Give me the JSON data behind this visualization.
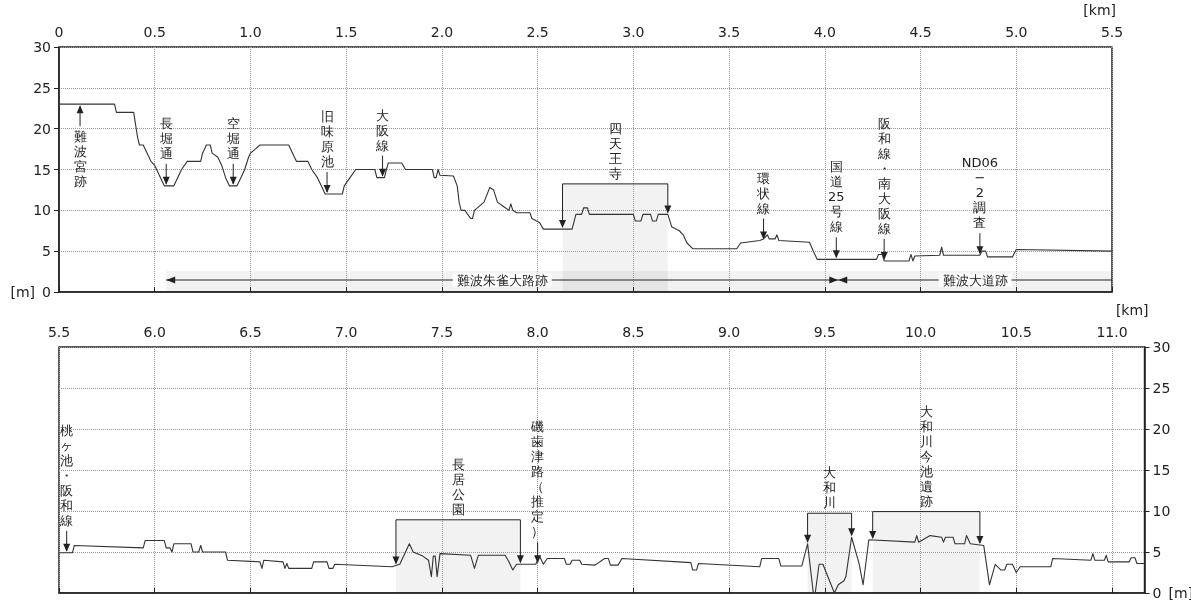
{
  "chart_data": [
    {
      "type": "line",
      "xlabel": "[km]",
      "ylabel": "[m]",
      "color": "#333333",
      "grid": true,
      "marker": "none",
      "line_style": "solid",
      "xlim": [
        0,
        5.5
      ],
      "ylim": [
        0,
        30
      ],
      "xticks": [
        0,
        0.5,
        {
          "value": 1,
          "label": "1.0"
        },
        1.5,
        {
          "value": 2,
          "label": "2.0"
        },
        2.5,
        {
          "value": 3,
          "label": "3.0"
        },
        3.5,
        {
          "value": 4,
          "label": "4.0"
        },
        4.5,
        {
          "value": 5,
          "label": "5.0"
        },
        5.5
      ],
      "yticks": [
        0,
        5,
        10,
        15,
        20,
        25,
        30
      ],
      "x": [
        0,
        0.29,
        0.3,
        0.39,
        0.41,
        0.42,
        0.44,
        0.45,
        0.48,
        0.5,
        0.51,
        0.53,
        0.55,
        0.6,
        0.62,
        0.64,
        0.67,
        0.74,
        0.75,
        0.77,
        0.79,
        0.8,
        0.83,
        0.85,
        0.87,
        0.89,
        0.93,
        0.95,
        0.97,
        0.99,
        1.0,
        1.05,
        1.2,
        1.22,
        1.24,
        1.3,
        1.32,
        1.35,
        1.37,
        1.39,
        1.48,
        1.49,
        1.52,
        1.55,
        1.65,
        1.66,
        1.7,
        1.71,
        1.72,
        1.79,
        1.81,
        1.95,
        1.96,
        1.97,
        1.98,
        1.99,
        2.06,
        2.08,
        2.09,
        2.1,
        2.12,
        2.15,
        2.16,
        2.17,
        2.22,
        2.25,
        2.27,
        2.29,
        2.32,
        2.35,
        2.36,
        2.37,
        2.39,
        2.46,
        2.47,
        2.51,
        2.53,
        2.68,
        2.7,
        2.73,
        2.74,
        2.76,
        2.77,
        3.0,
        3.01,
        3.04,
        3.05,
        3.09,
        3.1,
        3.12,
        3.13,
        3.18,
        3.2,
        3.24,
        3.26,
        3.28,
        3.31,
        3.54,
        3.56,
        3.66,
        3.68,
        3.7,
        3.71,
        3.74,
        3.75,
        3.76,
        3.92,
        3.94,
        3.96,
        4.27,
        4.28,
        4.3,
        4.31,
        4.44,
        4.45,
        4.46,
        4.47,
        4.6,
        4.61,
        4.62,
        4.81,
        4.82,
        4.84,
        4.85,
        4.98,
        5.0,
        5.5
      ],
      "values": [
        23,
        23,
        22,
        22,
        19,
        18,
        18,
        17.5,
        16,
        15.5,
        15,
        14,
        13,
        13,
        14,
        15,
        16,
        16,
        17,
        18,
        18,
        17,
        16.5,
        15.5,
        14,
        13,
        13,
        14,
        15,
        16.5,
        17,
        18,
        18,
        17,
        16,
        16,
        15,
        14,
        13,
        12,
        12,
        13,
        14,
        15,
        15,
        14,
        14,
        15,
        15.8,
        15.8,
        15,
        15,
        14,
        14,
        15,
        14.3,
        14.2,
        13,
        11,
        10,
        10,
        9,
        9,
        10,
        11,
        12.8,
        12.5,
        11,
        10.5,
        10,
        10.8,
        10,
        9.7,
        9.7,
        9,
        8.5,
        7.7,
        7.7,
        9.5,
        9.5,
        10.3,
        10.3,
        9.5,
        9.5,
        8.7,
        8.7,
        9.5,
        9.5,
        8.7,
        8.7,
        9.5,
        9.5,
        8,
        7.5,
        7,
        6,
        5.3,
        5.3,
        6,
        6.3,
        6.5,
        7,
        6.5,
        6.5,
        7,
        6.3,
        6.1,
        5,
        4,
        4,
        4.6,
        4.6,
        3.8,
        3.8,
        4.6,
        3.8,
        4.4,
        4.5,
        5.5,
        4.5,
        4.5,
        5,
        5,
        4.3,
        4.3,
        5.2,
        5
      ],
      "annotations": [
        {
          "text": "難波宮跡",
          "x": 0.11,
          "y": 23
        },
        {
          "text": "長堀通",
          "x": 0.56,
          "y": 13
        },
        {
          "text": "空堀通",
          "x": 0.91,
          "y": 13
        },
        {
          "text": "旧味原池",
          "x": 1.4,
          "y": 12
        },
        {
          "text": "大阪線",
          "x": 1.69,
          "y": 14
        },
        {
          "text": "環状線",
          "x": 3.68,
          "y": 6.3
        },
        {
          "text": "国道25号線",
          "x": 4.06,
          "y": 4
        },
        {
          "text": "阪和線・南大阪線",
          "x": 4.31,
          "y": 3.8
        },
        {
          "text": "ND06−2調査",
          "x": 4.81,
          "y": 4.5
        }
      ],
      "bands": [
        {
          "axis": "x",
          "from": 2.63,
          "to": 3.18,
          "label": "四天王寺"
        },
        {
          "axis": "x",
          "from": 0.56,
          "to": 4.07,
          "label": "難波朱雀大路跡"
        },
        {
          "axis": "x",
          "from": 4.07,
          "to": 5.5,
          "label": "難波大道跡"
        }
      ]
    },
    {
      "type": "line",
      "xlabel": "[km]",
      "ylabel": "[m]",
      "color": "#333333",
      "grid": true,
      "marker": "none",
      "line_style": "solid",
      "xlim": [
        5.5,
        11.17
      ],
      "ylim": [
        0,
        30
      ],
      "xticks": [
        5.5,
        {
          "value": 6,
          "label": "6.0"
        },
        6.5,
        {
          "value": 7,
          "label": "7.0"
        },
        7.5,
        {
          "value": 8,
          "label": "8.0"
        },
        8.5,
        {
          "value": 9,
          "label": "9.0"
        },
        9.5,
        {
          "value": 10,
          "label": "10.0"
        },
        10.5,
        {
          "value": 11,
          "label": "11.0"
        }
      ],
      "yticks": [
        0,
        5,
        10,
        15,
        20,
        25,
        30
      ],
      "x": [
        5.5,
        5.57,
        5.58,
        5.94,
        5.95,
        6.05,
        6.06,
        6.08,
        6.09,
        6.1,
        6.19,
        6.2,
        6.23,
        6.24,
        6.25,
        6.37,
        6.38,
        6.55,
        6.56,
        6.57,
        6.67,
        6.68,
        6.69,
        6.7,
        6.82,
        6.83,
        6.9,
        6.91,
        6.93,
        6.94,
        7.24,
        7.28,
        7.33,
        7.35,
        7.4,
        7.43,
        7.445,
        7.455,
        7.465,
        7.475,
        7.49,
        7.65,
        7.67,
        7.69,
        7.83,
        7.85,
        7.87,
        7.89,
        7.99,
        8.01,
        8.03,
        8.05,
        8.14,
        8.15,
        8.17,
        8.18,
        8.22,
        8.23,
        8.3,
        8.35,
        8.37,
        8.38,
        8.42,
        8.44,
        8.8,
        8.81,
        8.83,
        8.84,
        9.16,
        9.17,
        9.26,
        9.27,
        9.38,
        9.41,
        9.44,
        9.45,
        9.47,
        9.49,
        9.55,
        9.57,
        9.6,
        9.61,
        9.64,
        9.68,
        9.7,
        9.73,
        9.97,
        9.98,
        9.99,
        10.05,
        10.11,
        10.12,
        10.13,
        10.17,
        10.18,
        10.23,
        10.24,
        10.26,
        10.33,
        10.36,
        10.39,
        10.42,
        10.44,
        10.45,
        10.48,
        10.5,
        10.52,
        10.68,
        10.69,
        10.89,
        10.9,
        10.91,
        10.96,
        10.97,
        10.98,
        11.09,
        11.1,
        11.12,
        11.13,
        11.17
      ],
      "values": [
        4.9,
        4.9,
        5.8,
        5.5,
        6.4,
        6.4,
        5.5,
        5.5,
        5,
        6,
        6,
        5,
        5,
        5.8,
        5,
        5,
        4,
        3.8,
        3,
        4,
        3.8,
        3,
        3.6,
        3,
        3,
        3.8,
        3.8,
        3,
        3,
        3.5,
        3.2,
        3.5,
        6,
        5,
        4.5,
        4,
        2,
        4.5,
        4.5,
        2,
        4.8,
        4.6,
        3,
        4.6,
        4.6,
        3.8,
        2.8,
        3.5,
        3.5,
        4.5,
        3.5,
        4.2,
        4.2,
        3.5,
        3.5,
        4,
        4,
        3.5,
        3.4,
        4.2,
        4.2,
        3.4,
        3.4,
        4.2,
        3.7,
        2.8,
        2.8,
        3.6,
        3.2,
        4.2,
        4.2,
        3.3,
        3.3,
        6,
        0,
        0,
        3.5,
        3.5,
        0,
        1,
        1.5,
        2,
        6.8,
        3.5,
        1,
        6.5,
        6.2,
        7,
        6.2,
        7,
        6.8,
        6.2,
        6.8,
        6.8,
        6,
        6,
        7,
        6,
        5.8,
        1,
        3.5,
        2.8,
        2.8,
        3.5,
        3.5,
        2.5,
        3.2,
        3.2,
        4.2,
        4,
        4.8,
        4,
        4,
        4.6,
        3.8,
        3.8,
        4.3,
        4.3,
        3.6,
        3.6
      ],
      "annotations": [
        {
          "text": "桃ヶ池・阪和線",
          "x": 5.54,
          "y": 4.9
        },
        {
          "text": "磯歯津路（推定）",
          "x": 8.0,
          "y": 3.5
        }
      ],
      "bands": [
        {
          "axis": "x",
          "from": 7.26,
          "to": 7.91,
          "label": "長居公園"
        },
        {
          "axis": "x",
          "from": 9.41,
          "to": 9.64,
          "label": "大和川"
        },
        {
          "axis": "x",
          "from": 9.75,
          "to": 10.31,
          "label": "大和川今池遺跡"
        }
      ]
    }
  ]
}
